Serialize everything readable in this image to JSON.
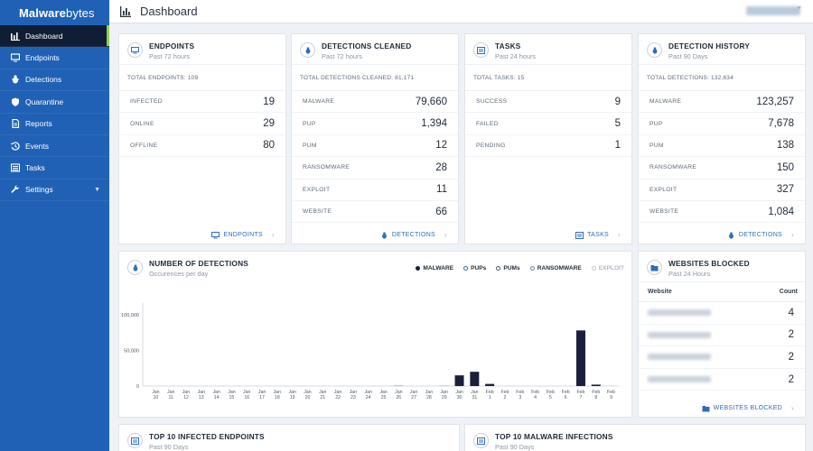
{
  "brand": {
    "bold": "Malware",
    "light": "bytes"
  },
  "sidebar": {
    "items": [
      {
        "label": "Dashboard",
        "icon": "dashboard-icon"
      },
      {
        "label": "Endpoints",
        "icon": "monitor-icon"
      },
      {
        "label": "Detections",
        "icon": "bug-icon"
      },
      {
        "label": "Quarantine",
        "icon": "shield-icon"
      },
      {
        "label": "Reports",
        "icon": "document-icon"
      },
      {
        "label": "Events",
        "icon": "history-icon"
      },
      {
        "label": "Tasks",
        "icon": "list-icon"
      },
      {
        "label": "Settings",
        "icon": "wrench-icon"
      }
    ]
  },
  "header": {
    "title": "Dashboard"
  },
  "cards": {
    "endpoints": {
      "title": "ENDPOINTS",
      "subtitle": "Past 72 hours",
      "total": "TOTAL ENDPOINTS: 109",
      "rows": [
        {
          "label": "INFECTED",
          "value": "19"
        },
        {
          "label": "ONLINE",
          "value": "29"
        },
        {
          "label": "OFFLINE",
          "value": "80"
        }
      ],
      "footer": "ENDPOINTS"
    },
    "detections_cleaned": {
      "title": "DETECTIONS CLEANED",
      "subtitle": "Past 72 hours",
      "total": "TOTAL DETECTIONS CLEANED: 81,171",
      "rows": [
        {
          "label": "MALWARE",
          "value": "79,660"
        },
        {
          "label": "PUP",
          "value": "1,394"
        },
        {
          "label": "PUM",
          "value": "12"
        },
        {
          "label": "RANSOMWARE",
          "value": "28"
        },
        {
          "label": "EXPLOIT",
          "value": "11"
        },
        {
          "label": "WEBSITE",
          "value": "66"
        }
      ],
      "footer": "DETECTIONS"
    },
    "tasks": {
      "title": "TASKS",
      "subtitle": "Past 24 hours",
      "total": "TOTAL TASKS: 15",
      "rows": [
        {
          "label": "SUCCESS",
          "value": "9"
        },
        {
          "label": "FAILED",
          "value": "5"
        },
        {
          "label": "PENDING",
          "value": "1"
        }
      ],
      "footer": "TASKS"
    },
    "detection_history": {
      "title": "DETECTION HISTORY",
      "subtitle": "Past 90 Days",
      "total": "TOTAL DETECTIONS: 132,634",
      "rows": [
        {
          "label": "MALWARE",
          "value": "123,257"
        },
        {
          "label": "PUP",
          "value": "7,678"
        },
        {
          "label": "PUM",
          "value": "138"
        },
        {
          "label": "RANSOMWARE",
          "value": "150"
        },
        {
          "label": "EXPLOIT",
          "value": "327"
        },
        {
          "label": "WEBSITE",
          "value": "1,084"
        }
      ],
      "footer": "DETECTIONS"
    },
    "number_of_detections": {
      "title": "NUMBER OF DETECTIONS",
      "subtitle": "Occurences per day"
    },
    "websites_blocked": {
      "title": "WEBSITES BLOCKED",
      "subtitle": "Past 24 Hours",
      "col_website": "Website",
      "col_count": "Count",
      "counts": [
        "4",
        "2",
        "2",
        "2"
      ],
      "footer": "WEBSITES BLOCKED"
    },
    "top_infected": {
      "title": "TOP 10 INFECTED ENDPOINTS",
      "subtitle": "Past 90 Days"
    },
    "top_malware": {
      "title": "TOP 10 MALWARE INFECTIONS",
      "subtitle": "Past 90 Days"
    }
  },
  "legend": [
    {
      "label": "MALWARE",
      "color": "#1b1f3b"
    },
    {
      "label": "PUPs",
      "color": "#2f6cc0"
    },
    {
      "label": "PUMs",
      "color": "#4a5566"
    },
    {
      "label": "RANSOMWARE",
      "color": "#7a8696"
    },
    {
      "label": "EXPLOIT",
      "color": "#c3cad3"
    }
  ],
  "chart_data": {
    "type": "bar",
    "categories": [
      [
        "Jan",
        "10"
      ],
      [
        "Jan",
        "11"
      ],
      [
        "Jan",
        "12"
      ],
      [
        "Jan",
        "13"
      ],
      [
        "Jan",
        "14"
      ],
      [
        "Jan",
        "15"
      ],
      [
        "Jan",
        "16"
      ],
      [
        "Jan",
        "17"
      ],
      [
        "Jan",
        "18"
      ],
      [
        "Jan",
        "19"
      ],
      [
        "Jan",
        "20"
      ],
      [
        "Jan",
        "21"
      ],
      [
        "Jan",
        "22"
      ],
      [
        "Jan",
        "23"
      ],
      [
        "Jan",
        "24"
      ],
      [
        "Jan",
        "25"
      ],
      [
        "Jan",
        "26"
      ],
      [
        "Jan",
        "27"
      ],
      [
        "Jan",
        "28"
      ],
      [
        "Jan",
        "29"
      ],
      [
        "Jan",
        "30"
      ],
      [
        "Jan",
        "31"
      ],
      [
        "Feb",
        "1"
      ],
      [
        "Feb",
        "2"
      ],
      [
        "Feb",
        "3"
      ],
      [
        "Feb",
        "4"
      ],
      [
        "Feb",
        "5"
      ],
      [
        "Feb",
        "6"
      ],
      [
        "Feb",
        "7"
      ],
      [
        "Feb",
        "8"
      ],
      [
        "Feb",
        "9"
      ]
    ],
    "series": [
      {
        "name": "MALWARE",
        "values": [
          0,
          0,
          0,
          0,
          0,
          0,
          0,
          0,
          0,
          0,
          0,
          0,
          0,
          0,
          0,
          0,
          0,
          0,
          0,
          0,
          15000,
          20000,
          3000,
          0,
          0,
          0,
          0,
          0,
          78000,
          2000,
          0
        ]
      },
      {
        "name": "EXPLOIT",
        "values": [
          0,
          0,
          0,
          0,
          0,
          0,
          0,
          0,
          0,
          0,
          0,
          0,
          0,
          0,
          0,
          0,
          1500,
          0,
          0,
          1000,
          0,
          0,
          0,
          0,
          0,
          0,
          0,
          0,
          0,
          0,
          0
        ]
      }
    ],
    "yticks": [
      "0",
      "50,000",
      "100,000"
    ],
    "ylim": [
      0,
      110000
    ]
  }
}
